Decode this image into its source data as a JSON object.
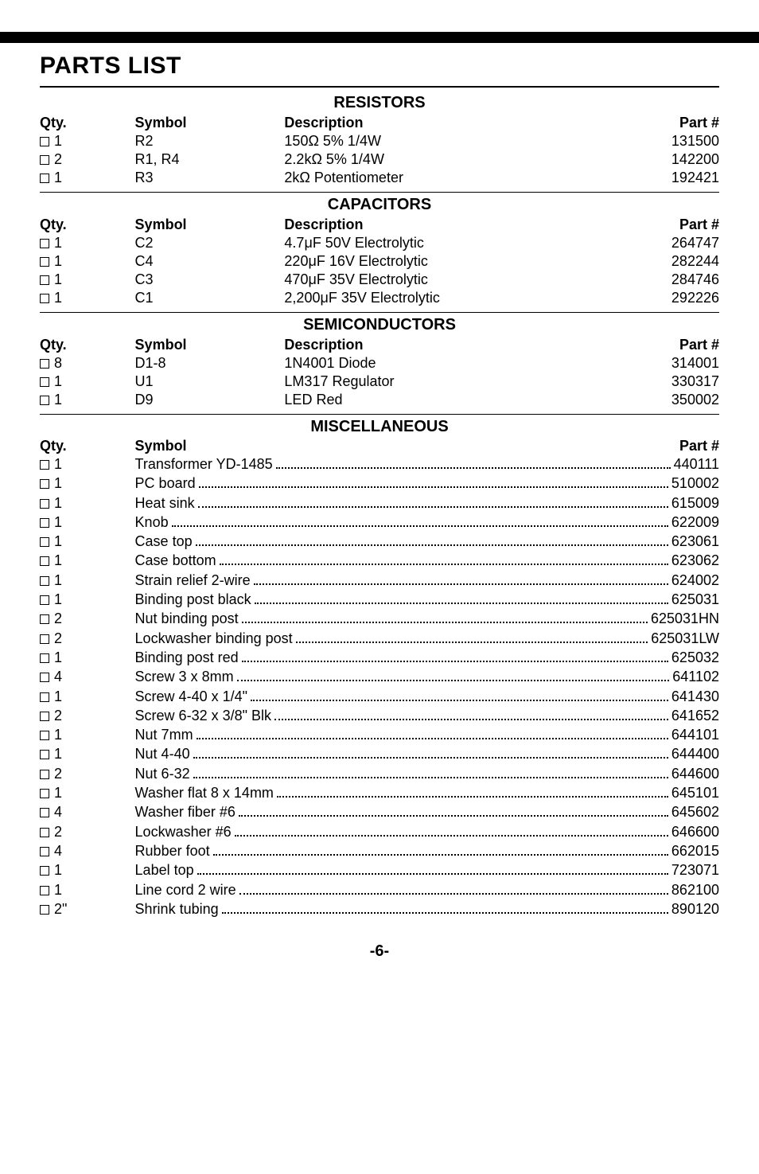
{
  "page_title": "PARTS LIST",
  "page_number": "-6-",
  "sections": {
    "resistors": {
      "heading": "RESISTORS",
      "cols": {
        "qty": "Qty.",
        "symbol": "Symbol",
        "desc": "Description",
        "part": "Part #"
      },
      "rows": [
        {
          "qty": "1",
          "symbol": "R2",
          "desc": "150Ω 5% 1/4W",
          "part": "131500"
        },
        {
          "qty": "2",
          "symbol": "R1, R4",
          "desc": "2.2kΩ 5% 1/4W",
          "part": "142200"
        },
        {
          "qty": "1",
          "symbol": "R3",
          "desc": "2kΩ Potentiometer",
          "part": "192421"
        }
      ]
    },
    "capacitors": {
      "heading": "CAPACITORS",
      "cols": {
        "qty": "Qty.",
        "symbol": "Symbol",
        "desc": "Description",
        "part": "Part #"
      },
      "rows": [
        {
          "qty": "1",
          "symbol": "C2",
          "desc": "4.7μF 50V Electrolytic",
          "part": "264747"
        },
        {
          "qty": "1",
          "symbol": "C4",
          "desc": "220μF 16V Electrolytic",
          "part": "282244"
        },
        {
          "qty": "1",
          "symbol": "C3",
          "desc": "470μF 35V Electrolytic",
          "part": "284746"
        },
        {
          "qty": "1",
          "symbol": "C1",
          "desc": "2,200μF 35V Electrolytic",
          "part": "292226"
        }
      ]
    },
    "semiconductors": {
      "heading": "SEMICONDUCTORS",
      "cols": {
        "qty": "Qty.",
        "symbol": "Symbol",
        "desc": "Description",
        "part": "Part #"
      },
      "rows": [
        {
          "qty": "8",
          "symbol": "D1-8",
          "desc": "1N4001 Diode",
          "part": "314001"
        },
        {
          "qty": "1",
          "symbol": "U1",
          "desc": "LM317 Regulator",
          "part": "330317"
        },
        {
          "qty": "1",
          "symbol": "D9",
          "desc": "LED Red",
          "part": "350002"
        }
      ]
    },
    "misc": {
      "heading": "MISCELLANEOUS",
      "cols": {
        "qty": "Qty.",
        "symbol": "Symbol",
        "part": "Part #"
      },
      "rows": [
        {
          "qty": "1",
          "label": "Transformer YD-1485",
          "part": " 440111"
        },
        {
          "qty": "1",
          "label": "PC board",
          "part": "510002"
        },
        {
          "qty": "1",
          "label": "Heat sink",
          "part": "615009"
        },
        {
          "qty": "1",
          "label": "Knob",
          "part": "622009"
        },
        {
          "qty": "1",
          "label": "Case top",
          "part": "623061"
        },
        {
          "qty": "1",
          "label": "Case bottom",
          "part": "623062"
        },
        {
          "qty": "1",
          "label": "Strain relief 2-wire",
          "part": "624002"
        },
        {
          "qty": "1",
          "label": "Binding post black",
          "part": "625031"
        },
        {
          "qty": "2",
          "label": "Nut binding post",
          "part": "625031HN"
        },
        {
          "qty": "2",
          "label": "Lockwasher binding post",
          "part": "625031LW"
        },
        {
          "qty": "1",
          "label": "Binding post red",
          "part": "625032"
        },
        {
          "qty": "4",
          "label": "Screw 3 x 8mm",
          "part": " 641102"
        },
        {
          "qty": "1",
          "label": "Screw 4-40 x 1/4\"",
          "part": "641430"
        },
        {
          "qty": "2",
          "label": "Screw 6-32 x 3/8\" Blk",
          "part": "641652"
        },
        {
          "qty": "1",
          "label": "Nut 7mm",
          "part": "644101"
        },
        {
          "qty": "1",
          "label": "Nut 4-40",
          "part": "644400"
        },
        {
          "qty": "2",
          "label": "Nut 6-32",
          "part": "644600"
        },
        {
          "qty": "1",
          "label": "Washer flat 8 x 14mm",
          "part": "645101"
        },
        {
          "qty": "4",
          "label": "Washer fiber #6",
          "part": "645602"
        },
        {
          "qty": "2",
          "label": "Lockwasher #6",
          "part": "646600"
        },
        {
          "qty": "4",
          "label": "Rubber foot",
          "part": "662015"
        },
        {
          "qty": "1",
          "label": "Label top",
          "part": "723071"
        },
        {
          "qty": "1",
          "label": "Line cord 2 wire",
          "part": "862100"
        },
        {
          "qty": "2\"",
          "label": "Shrink tubing",
          "part": "890120"
        }
      ]
    }
  }
}
